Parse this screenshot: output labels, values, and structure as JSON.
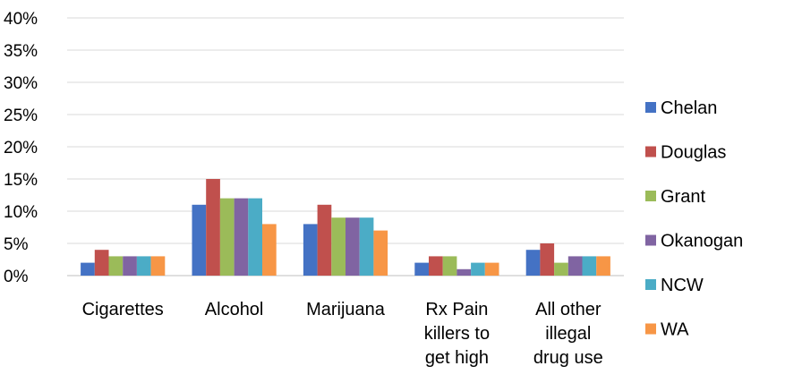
{
  "chart_data": {
    "type": "bar",
    "title": "",
    "xlabel": "",
    "ylabel": "",
    "ylim": [
      0,
      40
    ],
    "y_ticks": [
      "0%",
      "5%",
      "10%",
      "15%",
      "20%",
      "25%",
      "30%",
      "35%",
      "40%"
    ],
    "grid": true,
    "legend_position": "right",
    "categories": [
      [
        "Cigarettes"
      ],
      [
        "Alcohol"
      ],
      [
        "Marijuana"
      ],
      [
        "Rx Pain",
        "killers to",
        "get high"
      ],
      [
        "All other",
        "illegal",
        "drug use"
      ]
    ],
    "series": [
      {
        "name": "Chelan",
        "color": "#4472C4",
        "values": [
          2,
          11,
          8,
          2,
          4
        ]
      },
      {
        "name": "Douglas",
        "color": "#C0504D",
        "values": [
          4,
          15,
          11,
          3,
          5
        ]
      },
      {
        "name": "Grant",
        "color": "#9BBB59",
        "values": [
          3,
          12,
          9,
          3,
          2
        ]
      },
      {
        "name": "Okanogan",
        "color": "#8064A2",
        "values": [
          3,
          12,
          9,
          1,
          3
        ]
      },
      {
        "name": "NCW",
        "color": "#4BACC6",
        "values": [
          3,
          12,
          9,
          2,
          3
        ]
      },
      {
        "name": "WA",
        "color": "#F79646",
        "values": [
          3,
          8,
          7,
          2,
          3
        ]
      }
    ]
  }
}
